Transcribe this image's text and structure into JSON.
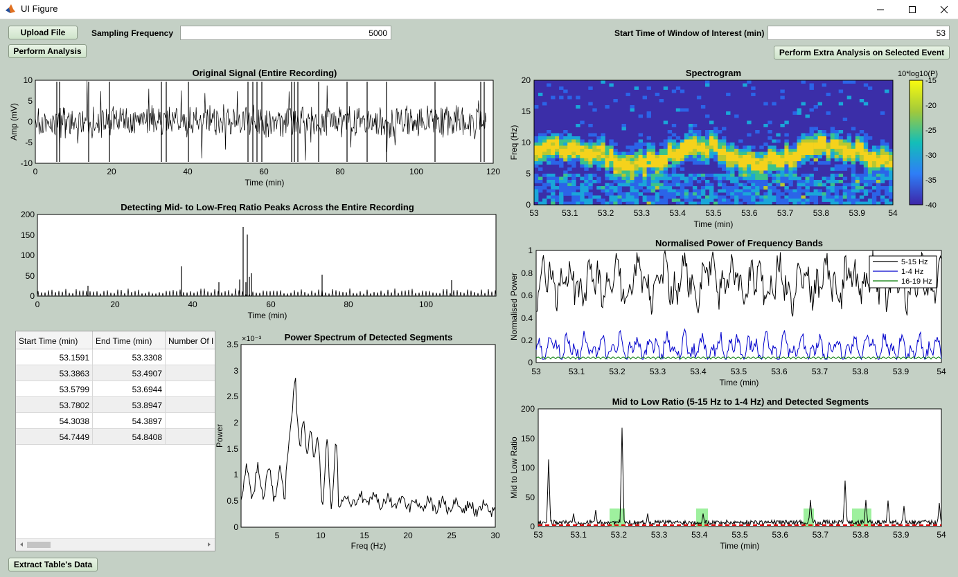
{
  "window": {
    "title": "UI Figure"
  },
  "controls": {
    "upload_label": "Upload File",
    "perform_label": "Perform Analysis",
    "fs_label": "Sampling Frequency",
    "fs_value": "5000",
    "start_label": "Start Time of Window of Interest (min)",
    "start_value": "53",
    "extra_label": "Perform Extra Analysis on Selected Event",
    "extract_label": "Extract Table's Data"
  },
  "plots": {
    "orig": {
      "title": "Original Signal (Entire Recording)",
      "xlabel": "Time (min)",
      "ylabel": "Amp (mV)",
      "xticks": [
        "0",
        "20",
        "40",
        "60",
        "80",
        "100",
        "120"
      ],
      "yticks": [
        "10",
        "5",
        "0",
        "-5",
        "-10"
      ]
    },
    "ratio_all": {
      "title": "Detecting Mid- to Low-Freq Ratio Peaks Across the Entire Recording",
      "xlabel": "Time (min)",
      "xticks": [
        "0",
        "20",
        "40",
        "60",
        "80",
        "100"
      ],
      "yticks": [
        "200",
        "150",
        "100",
        "50",
        "0"
      ]
    },
    "spec": {
      "title": "Spectrogram",
      "xlabel": "Time (min)",
      "ylabel": "Freq (Hz)",
      "xticks": [
        "53",
        "53.1",
        "53.2",
        "53.3",
        "53.4",
        "53.5",
        "53.6",
        "53.7",
        "53.8",
        "53.9",
        "54"
      ],
      "yticks": [
        "20",
        "15",
        "10",
        "5",
        "0"
      ],
      "cbar_title": "10*log10(P)",
      "cbar_ticks": [
        "-15",
        "-20",
        "-25",
        "-30",
        "-35",
        "-40"
      ]
    },
    "bands": {
      "title": "Normalised Power of Frequency Bands",
      "xlabel": "Time (min)",
      "ylabel": "Normalised Power",
      "xticks": [
        "53",
        "53.1",
        "53.2",
        "53.3",
        "53.4",
        "53.5",
        "53.6",
        "53.7",
        "53.8",
        "53.9",
        "54"
      ],
      "yticks": [
        "1",
        "0.8",
        "0.6",
        "0.4",
        "0.2",
        "0"
      ],
      "legend": [
        "5-15 Hz",
        "1-4 Hz",
        "16-19 Hz"
      ]
    },
    "psd": {
      "title": "Power Spectrum of Detected Segments",
      "xlabel": "Freq (Hz)",
      "ylabel": "Power",
      "exponent": "×10⁻³",
      "xticks": [
        "5",
        "10",
        "15",
        "20",
        "25",
        "30"
      ],
      "yticks": [
        "3.5",
        "3",
        "2.5",
        "2",
        "1.5",
        "1",
        "0.5",
        "0"
      ]
    },
    "ratio_win": {
      "title": "Mid to Low Ratio (5-15 Hz to 1-4 Hz) and Detected Segments",
      "xlabel": "Time (min)",
      "ylabel": "Mid to Low Ratio",
      "xticks": [
        "53",
        "53.1",
        "53.2",
        "53.3",
        "53.4",
        "53.5",
        "53.6",
        "53.7",
        "53.8",
        "53.9",
        "54"
      ],
      "yticks": [
        "200",
        "150",
        "100",
        "50",
        "0"
      ]
    }
  },
  "colors": {
    "background": "#c4d0c5",
    "band1": "#000000",
    "band2": "#0000cc",
    "band3": "#007a00",
    "segment_fill": "#9ef09e",
    "threshold": "#e00000"
  },
  "table": {
    "headers": [
      "Start Time (min)",
      "End Time (min)",
      "Number Of I"
    ],
    "rows": [
      [
        "53.1591",
        "53.3308"
      ],
      [
        "53.3863",
        "53.4907"
      ],
      [
        "53.5799",
        "53.6944"
      ],
      [
        "53.7802",
        "53.8947"
      ],
      [
        "54.3038",
        "54.3897"
      ],
      [
        "54.7449",
        "54.8408"
      ]
    ]
  }
}
